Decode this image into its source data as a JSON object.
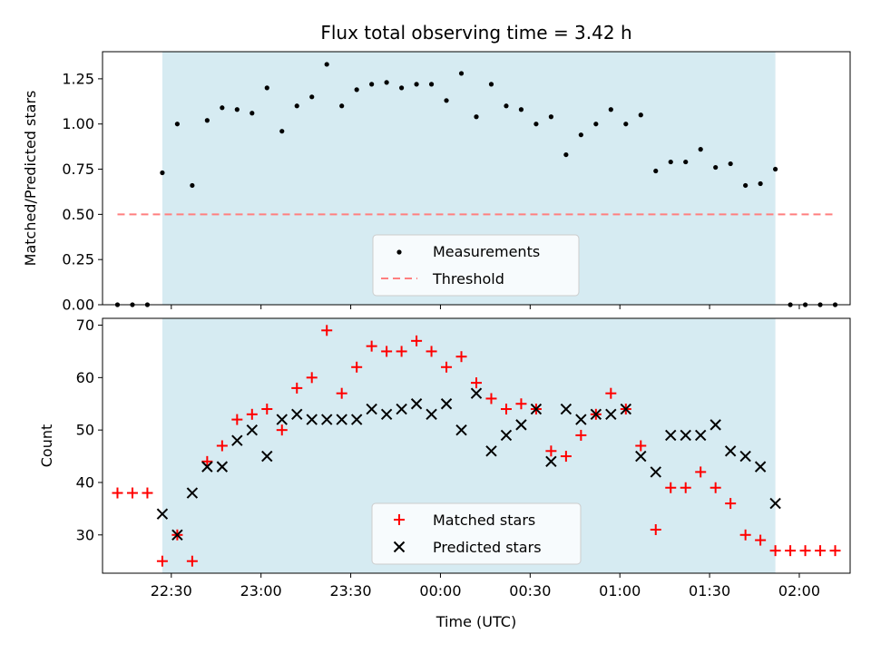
{
  "chart_data": [
    {
      "type": "scatter",
      "title": "Flux total observing time = 3.42 h",
      "ylabel": "Matched/Predicted stars",
      "xlabel": "",
      "ylim": [
        0,
        1.4
      ],
      "yticks": [
        "0.00",
        "0.25",
        "0.50",
        "0.75",
        "1.00",
        "1.25"
      ],
      "shaded_region": {
        "x_start": "22:27",
        "x_end": "01:52",
        "color": "#add8e6"
      },
      "threshold": {
        "name": "Threshold",
        "value": 0.5,
        "x_start": "22:12",
        "x_end": "02:12",
        "color": "#ff7f7f",
        "style": "dashed"
      },
      "legend": {
        "location": "lower-center",
        "entries": [
          "Measurements",
          "Threshold"
        ]
      },
      "series": [
        {
          "name": "Measurements",
          "marker": "dot",
          "color": "#000000",
          "x": [
            "22:12",
            "22:17",
            "22:22",
            "22:27",
            "22:32",
            "22:37",
            "22:42",
            "22:47",
            "22:52",
            "22:57",
            "23:02",
            "23:07",
            "23:12",
            "23:17",
            "23:22",
            "23:27",
            "23:32",
            "23:37",
            "23:42",
            "23:47",
            "23:52",
            "23:57",
            "00:02",
            "00:07",
            "00:12",
            "00:17",
            "00:22",
            "00:27",
            "00:32",
            "00:37",
            "00:42",
            "00:47",
            "00:52",
            "00:57",
            "01:02",
            "01:07",
            "01:12",
            "01:17",
            "01:22",
            "01:27",
            "01:32",
            "01:37",
            "01:42",
            "01:47",
            "01:52",
            "01:57",
            "02:02",
            "02:07",
            "02:12"
          ],
          "y": [
            0,
            0,
            0,
            0.73,
            1.0,
            0.66,
            1.02,
            1.09,
            1.08,
            1.06,
            1.2,
            0.96,
            1.1,
            1.15,
            1.33,
            1.1,
            1.19,
            1.22,
            1.23,
            1.2,
            1.22,
            1.22,
            1.13,
            1.28,
            1.04,
            1.22,
            1.1,
            1.08,
            1.0,
            1.04,
            0.83,
            0.94,
            1.0,
            1.08,
            1.0,
            1.05,
            0.74,
            0.79,
            0.79,
            0.86,
            0.76,
            0.78,
            0.66,
            0.67,
            0.75,
            0,
            0,
            0,
            0
          ]
        }
      ]
    },
    {
      "type": "scatter",
      "title": "",
      "ylabel": "Count",
      "xlabel": "Time (UTC)",
      "ylim": [
        22.7,
        71.3
      ],
      "yticks": [
        "30",
        "40",
        "50",
        "60",
        "70"
      ],
      "xticks": [
        "22:30",
        "23:00",
        "23:30",
        "00:00",
        "00:30",
        "01:00",
        "01:30",
        "02:00"
      ],
      "shaded_region": {
        "x_start": "22:27",
        "x_end": "01:52",
        "color": "#add8e6"
      },
      "legend": {
        "location": "lower-center",
        "entries": [
          "Matched stars",
          "Predicted stars"
        ]
      },
      "series": [
        {
          "name": "Matched stars",
          "marker": "plus",
          "color": "#ff0000",
          "x": [
            "22:12",
            "22:17",
            "22:22",
            "22:27",
            "22:32",
            "22:37",
            "22:42",
            "22:47",
            "22:52",
            "22:57",
            "23:02",
            "23:07",
            "23:12",
            "23:17",
            "23:22",
            "23:27",
            "23:32",
            "23:37",
            "23:42",
            "23:47",
            "23:52",
            "23:57",
            "00:02",
            "00:07",
            "00:12",
            "00:17",
            "00:22",
            "00:27",
            "00:32",
            "00:37",
            "00:42",
            "00:47",
            "00:52",
            "00:57",
            "01:02",
            "01:07",
            "01:12",
            "01:17",
            "01:22",
            "01:27",
            "01:32",
            "01:37",
            "01:42",
            "01:47",
            "01:52",
            "01:57",
            "02:02",
            "02:07",
            "02:12"
          ],
          "y": [
            38,
            38,
            38,
            25,
            30,
            25,
            44,
            47,
            52,
            53,
            54,
            50,
            58,
            60,
            69,
            57,
            62,
            66,
            65,
            65,
            67,
            65,
            62,
            64,
            59,
            56,
            54,
            55,
            54,
            46,
            45,
            49,
            53,
            57,
            54,
            47,
            31,
            39,
            39,
            42,
            39,
            36,
            30,
            29,
            27,
            27,
            27,
            27,
            27
          ]
        },
        {
          "name": "Predicted stars",
          "marker": "x",
          "color": "#000000",
          "x": [
            "22:27",
            "22:32",
            "22:37",
            "22:42",
            "22:47",
            "22:52",
            "22:57",
            "23:02",
            "23:07",
            "23:12",
            "23:17",
            "23:22",
            "23:27",
            "23:32",
            "23:37",
            "23:42",
            "23:47",
            "23:52",
            "23:57",
            "00:02",
            "00:07",
            "00:12",
            "00:17",
            "00:22",
            "00:27",
            "00:32",
            "00:37",
            "00:42",
            "00:47",
            "00:52",
            "00:57",
            "01:02",
            "01:07",
            "01:12",
            "01:17",
            "01:22",
            "01:27",
            "01:32",
            "01:37",
            "01:42",
            "01:47",
            "01:52"
          ],
          "y": [
            34,
            30,
            38,
            43,
            43,
            48,
            50,
            45,
            52,
            53,
            52,
            52,
            52,
            52,
            54,
            53,
            54,
            55,
            53,
            55,
            50,
            57,
            46,
            49,
            51,
            54,
            44,
            54,
            52,
            53,
            53,
            54,
            45,
            42,
            49,
            49,
            49,
            51,
            46,
            45,
            43,
            36
          ]
        }
      ]
    }
  ]
}
